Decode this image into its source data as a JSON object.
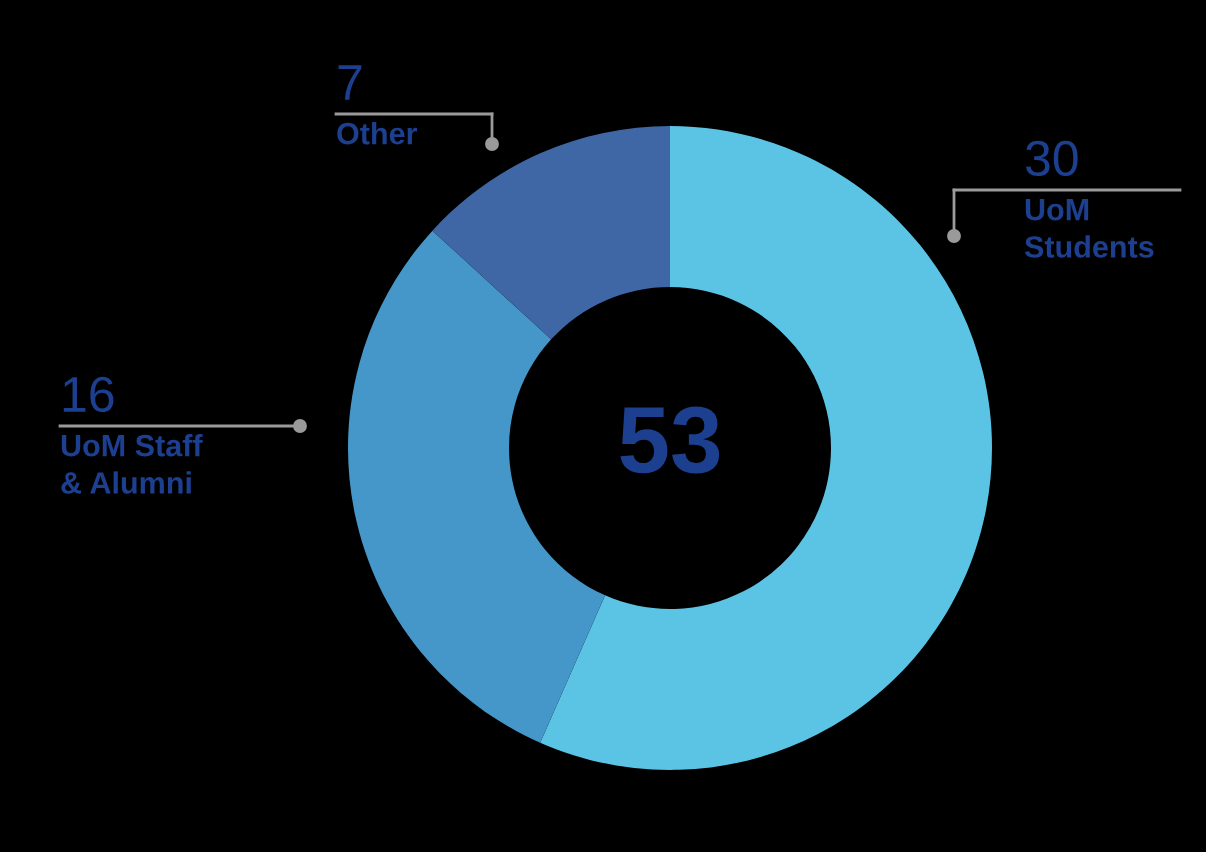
{
  "chart_data": {
    "type": "donut",
    "categories": [
      "UoM\nStudents",
      "UoM Staff\n& Alumni",
      "Other"
    ],
    "values": [
      30,
      16,
      7
    ],
    "colors": [
      "#5bc3e3",
      "#4597c9",
      "#3f67a6"
    ],
    "data_labels": true,
    "annotations": [
      "53"
    ]
  }
}
